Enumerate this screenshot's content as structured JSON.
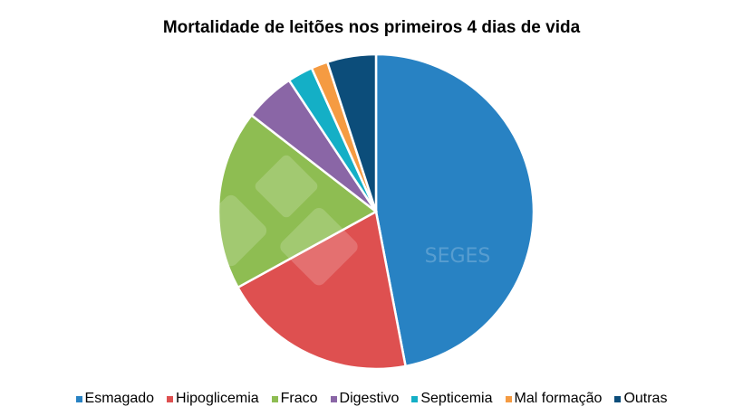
{
  "chart_data": {
    "type": "pie",
    "title": "Mortalidade de leitões nos primeiros 4 dias de vida",
    "categories": [
      "Esmagado",
      "Hipoglicemia",
      "Fraco",
      "Digestivo",
      "Septicemia",
      "Mal formação",
      "Outras"
    ],
    "values": [
      47,
      20,
      18.5,
      5.2,
      2.6,
      1.7,
      5.0
    ],
    "colors": [
      "#2882C3",
      "#DE5050",
      "#8EBD52",
      "#8A66A6",
      "#14AFC6",
      "#F59B42",
      "#0C4D7A"
    ],
    "legend_position": "bottom",
    "start_angle": "12 o'clock, clockwise",
    "watermark": "SEGES"
  }
}
